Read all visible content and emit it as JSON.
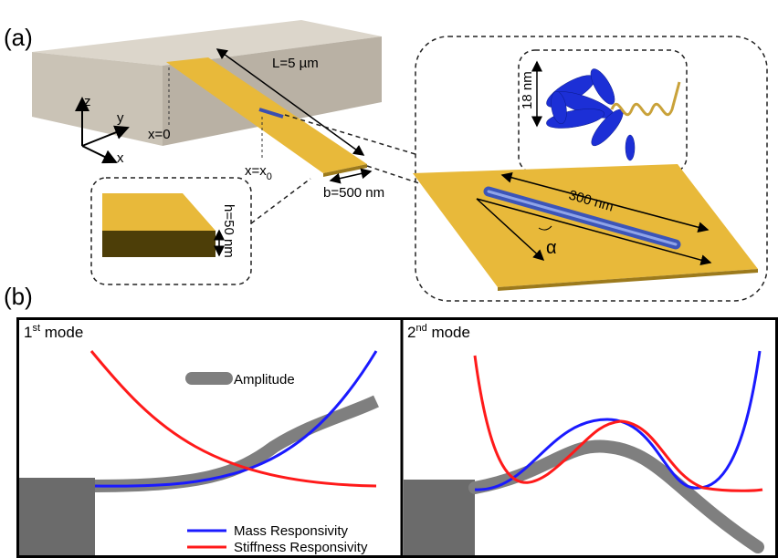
{
  "panel_a": {
    "label": "(a)",
    "axes": {
      "z": "z",
      "y": "y",
      "x": "x"
    },
    "annotations": {
      "origin": "x=0",
      "length": "L=5 µm",
      "position": {
        "base": "x=x",
        "sub": "0"
      },
      "width": "b=500 nm",
      "thickness": "h=50 nm",
      "diameter": "18 nm",
      "rod_length": "300 nm",
      "angle": "α"
    }
  },
  "panel_b": {
    "label": "(b)",
    "mode1": {
      "ordinal": "1",
      "suffix": "st",
      "title": " mode"
    },
    "mode2": {
      "ordinal": "2",
      "suffix": "nd",
      "title": " mode"
    },
    "legend": {
      "amplitude": "Amplitude",
      "mass": "Mass Responsivity",
      "stiffness": "Stiffness Responsivity"
    }
  }
}
